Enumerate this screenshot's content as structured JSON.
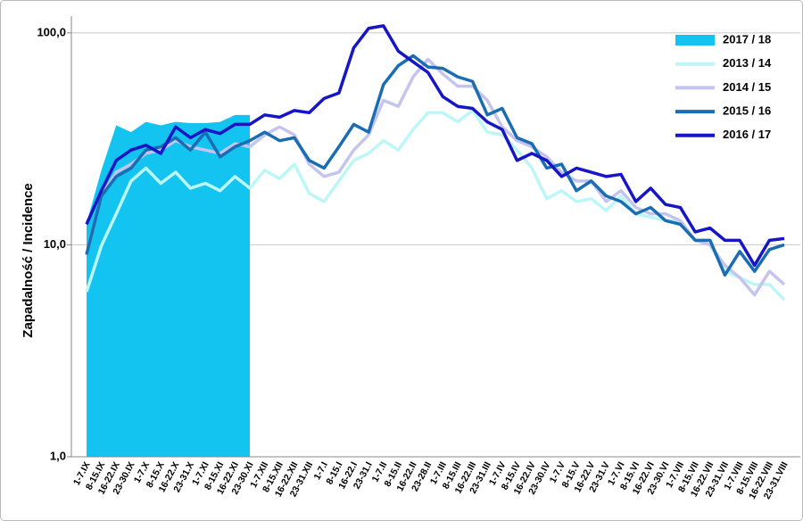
{
  "chart_data": {
    "type": "line",
    "y_label": "Zapadalność  /  Incidence",
    "log": true,
    "grid": true,
    "legend": "upper right",
    "ylim": [
      1,
      120
    ],
    "yticks": [
      {
        "value": 1,
        "label": "1,0"
      },
      {
        "value": 10,
        "label": "10,0"
      },
      {
        "value": 100,
        "label": "100,0"
      }
    ],
    "categories": [
      "1-7.IX",
      "8-15.IX",
      "16-22.IX",
      "23-30.IX",
      "1-7.X",
      "8-15.X",
      "16-22.X",
      "23-31.X",
      "1-7.XI",
      "8-15.XI",
      "16-22.XI",
      "23-30.XI",
      "1-7.XII",
      "8-15.XII",
      "16-22.XII",
      "23-31.XII",
      "1-7.I",
      "8-15.I",
      "16-22.I",
      "23-31.I",
      "1-7.II",
      "8-15.II",
      "16-22.II",
      "23-28.II",
      "1-7.III",
      "8-15.III",
      "16-22.III",
      "23-31.III",
      "1-7.IV",
      "8-15.IV",
      "16-22.IV",
      "23-30.IV",
      "1-7.V",
      "8-15.V",
      "16-22.V",
      "23-31.V",
      "1-7.VI",
      "8-15.VI",
      "16-22.VI",
      "23-30.VI",
      "1-7.VII",
      "8-15.VII",
      "16-22.VII",
      "23-31.VII",
      "1-7.VIII",
      "8-15.VIII",
      "16-22.VIII",
      "23-31.VIII"
    ],
    "series": [
      {
        "name": "2017 / 18",
        "style": "area",
        "color": "#13c3f0",
        "values": [
          12.6,
          22.5,
          36.6,
          34,
          38,
          36.6,
          38,
          37.5,
          37.5,
          38,
          41,
          41,
          null,
          null,
          null,
          null,
          null,
          null,
          null,
          null,
          null,
          null,
          null,
          null,
          null,
          null,
          null,
          null,
          null,
          null,
          null,
          null,
          null,
          null,
          null,
          null,
          null,
          null,
          null,
          null,
          null,
          null,
          null,
          null,
          null,
          null,
          null,
          null
        ]
      },
      {
        "name": "2013 / 14",
        "style": "line",
        "color": "#bdf6f6",
        "values": [
          6,
          9.9,
          14,
          20,
          23,
          19.5,
          22,
          18.5,
          19.5,
          18,
          21,
          18.5,
          22.5,
          20.5,
          24,
          17.5,
          16,
          20,
          25,
          27,
          31,
          28,
          35,
          42,
          42,
          38,
          43,
          34,
          33,
          28,
          23,
          16.5,
          18,
          16,
          16.5,
          14.5,
          17,
          14,
          13.5,
          13,
          13,
          10.5,
          10,
          7.5,
          7,
          6.5,
          6.5,
          5.5
        ]
      },
      {
        "name": "2014 / 15",
        "style": "line",
        "color": "#c4c4ef",
        "values": [
          9,
          17,
          22,
          24,
          27,
          28,
          31,
          29,
          28,
          27,
          30,
          29,
          33,
          36,
          33,
          24,
          21,
          22,
          28,
          33,
          48,
          45,
          62,
          75,
          64,
          56,
          56,
          48,
          36,
          31,
          29,
          26,
          22,
          20,
          20,
          16,
          18,
          15,
          14,
          14,
          13,
          10.5,
          10,
          8,
          7,
          5.8,
          7.5,
          6.5
        ]
      },
      {
        "name": "2015 / 16",
        "style": "line",
        "color": "#1a6db3",
        "values": [
          9,
          17,
          21,
          23,
          28,
          29,
          32,
          28,
          34,
          26,
          29,
          31,
          34,
          31,
          32,
          25,
          23,
          29,
          37,
          34,
          57,
          70,
          78,
          69,
          68,
          62,
          59,
          41,
          44,
          32,
          30,
          23,
          24,
          18,
          20,
          17,
          16,
          14,
          15,
          13,
          12.5,
          10.5,
          10.5,
          7.2,
          9.3,
          7.5,
          9.5,
          10
        ]
      },
      {
        "name": "2016 / 17",
        "style": "line",
        "color": "#1616c6",
        "values": [
          12.5,
          18,
          25,
          28,
          29.5,
          27,
          36,
          32,
          35,
          33.5,
          37,
          37,
          41,
          40,
          43,
          42,
          49,
          52,
          85,
          105,
          108,
          82,
          73,
          65,
          50,
          45,
          44,
          38,
          35,
          25,
          27,
          25,
          21,
          23,
          22,
          21,
          21.5,
          16,
          18.5,
          15.5,
          15,
          11.5,
          12,
          10.5,
          10.5,
          8,
          10.5,
          10.7
        ]
      }
    ]
  }
}
